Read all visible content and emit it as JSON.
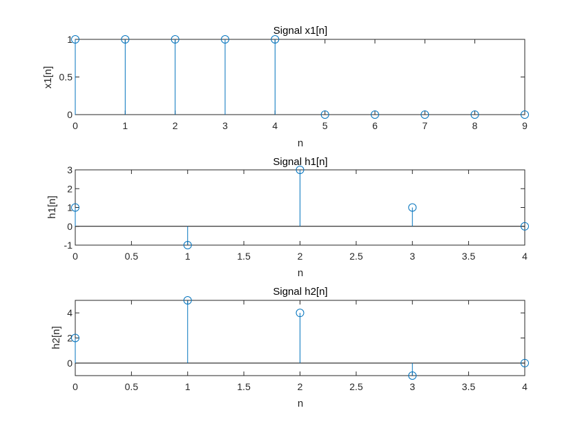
{
  "colors": {
    "series": "#0072BD",
    "axes": "#262626",
    "background": "#ffffff"
  },
  "chart_data": [
    {
      "type": "stem",
      "title": "Signal x1[n]",
      "xlabel": "n",
      "ylabel": "x1[n]",
      "x": [
        0,
        1,
        2,
        3,
        4,
        5,
        6,
        7,
        8,
        9
      ],
      "y": [
        1,
        1,
        1,
        1,
        1,
        0,
        0,
        0,
        0,
        0
      ],
      "xlim": [
        0,
        9
      ],
      "ylim": [
        0,
        1
      ],
      "xticks": [
        0,
        1,
        2,
        3,
        4,
        5,
        6,
        7,
        8,
        9
      ],
      "xtick_labels": [
        "0",
        "1",
        "2",
        "3",
        "4",
        "5",
        "6",
        "7",
        "8",
        "9"
      ],
      "yticks": [
        0,
        0.5,
        1
      ],
      "ytick_labels": [
        "0",
        "0.5",
        "1"
      ],
      "grid": false
    },
    {
      "type": "stem",
      "title": "Signal h1[n]",
      "xlabel": "n",
      "ylabel": "h1[n]",
      "x": [
        0,
        1,
        2,
        3,
        4
      ],
      "y": [
        1,
        -1,
        3,
        1,
        0
      ],
      "xlim": [
        0,
        4
      ],
      "ylim": [
        -1,
        3
      ],
      "xticks": [
        0,
        0.5,
        1,
        1.5,
        2,
        2.5,
        3,
        3.5,
        4
      ],
      "xtick_labels": [
        "0",
        "0.5",
        "1",
        "1.5",
        "2",
        "2.5",
        "3",
        "3.5",
        "4"
      ],
      "yticks": [
        -1,
        0,
        1,
        2,
        3
      ],
      "ytick_labels": [
        "-1",
        "0",
        "1",
        "2",
        "3"
      ],
      "grid": false
    },
    {
      "type": "stem",
      "title": "Signal h2[n]",
      "xlabel": "n",
      "ylabel": "h2[n]",
      "x": [
        0,
        1,
        2,
        3,
        4
      ],
      "y": [
        2,
        5,
        4,
        -1,
        0
      ],
      "xlim": [
        0,
        4
      ],
      "ylim": [
        -1,
        5
      ],
      "xticks": [
        0,
        0.5,
        1,
        1.5,
        2,
        2.5,
        3,
        3.5,
        4
      ],
      "xtick_labels": [
        "0",
        "0.5",
        "1",
        "1.5",
        "2",
        "2.5",
        "3",
        "3.5",
        "4"
      ],
      "yticks": [
        0,
        2,
        4
      ],
      "ytick_labels": [
        "0",
        "2",
        "4"
      ],
      "grid": false
    }
  ]
}
